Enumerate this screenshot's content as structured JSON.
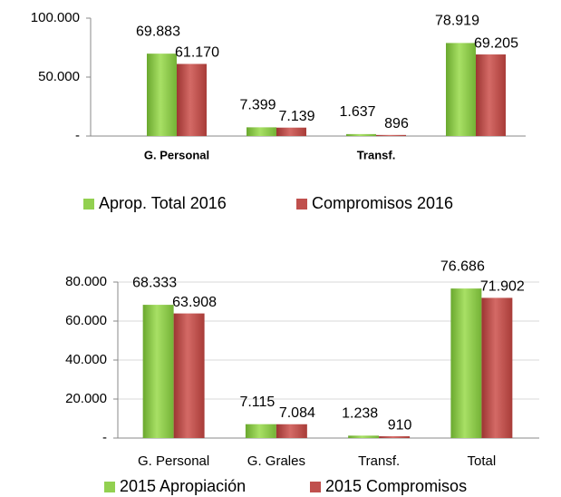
{
  "chart_data": [
    {
      "type": "bar",
      "categories": [
        "G. Personal",
        null,
        "Transf.",
        null
      ],
      "series": [
        {
          "name": "Aprop. Total 2016",
          "color": "#92d050",
          "values": [
            69883,
            7399,
            1637,
            78919
          ],
          "value_labels": [
            "69.883",
            "7.399",
            "1.637",
            "78.919"
          ]
        },
        {
          "name": "Compromisos 2016",
          "color": "#c0504d",
          "values": [
            61170,
            7139,
            896,
            69205
          ],
          "value_labels": [
            "61.170",
            "7.139",
            "896",
            "69.205"
          ]
        }
      ],
      "ylim": [
        0,
        100000
      ],
      "yticks": [
        {
          "value": 0,
          "label": "-"
        },
        {
          "value": 50000,
          "label": "50.000"
        },
        {
          "value": 100000,
          "label": "100.000"
        }
      ],
      "grid": false,
      "legend": "bottom"
    },
    {
      "type": "bar",
      "categories": [
        "G. Personal",
        "G. Grales",
        "Transf.",
        "Total"
      ],
      "series": [
        {
          "name": "2015 Apropiación",
          "color": "#92d050",
          "values": [
            68333,
            7115,
            1238,
            76686
          ],
          "value_labels": [
            "68.333",
            "7.115",
            "1.238",
            "76.686"
          ]
        },
        {
          "name": "2015 Compromisos",
          "color": "#c0504d",
          "values": [
            63908,
            7084,
            910,
            71902
          ],
          "value_labels": [
            "63.908",
            "7.084",
            "910",
            "71.902"
          ]
        }
      ],
      "ylim": [
        0,
        80000
      ],
      "yticks": [
        {
          "value": 0,
          "label": "-"
        },
        {
          "value": 20000,
          "label": "20.000"
        },
        {
          "value": 40000,
          "label": "40.000"
        },
        {
          "value": 60000,
          "label": "60.000"
        },
        {
          "value": 80000,
          "label": "80.000"
        }
      ],
      "grid": true,
      "legend": "bottom"
    }
  ]
}
